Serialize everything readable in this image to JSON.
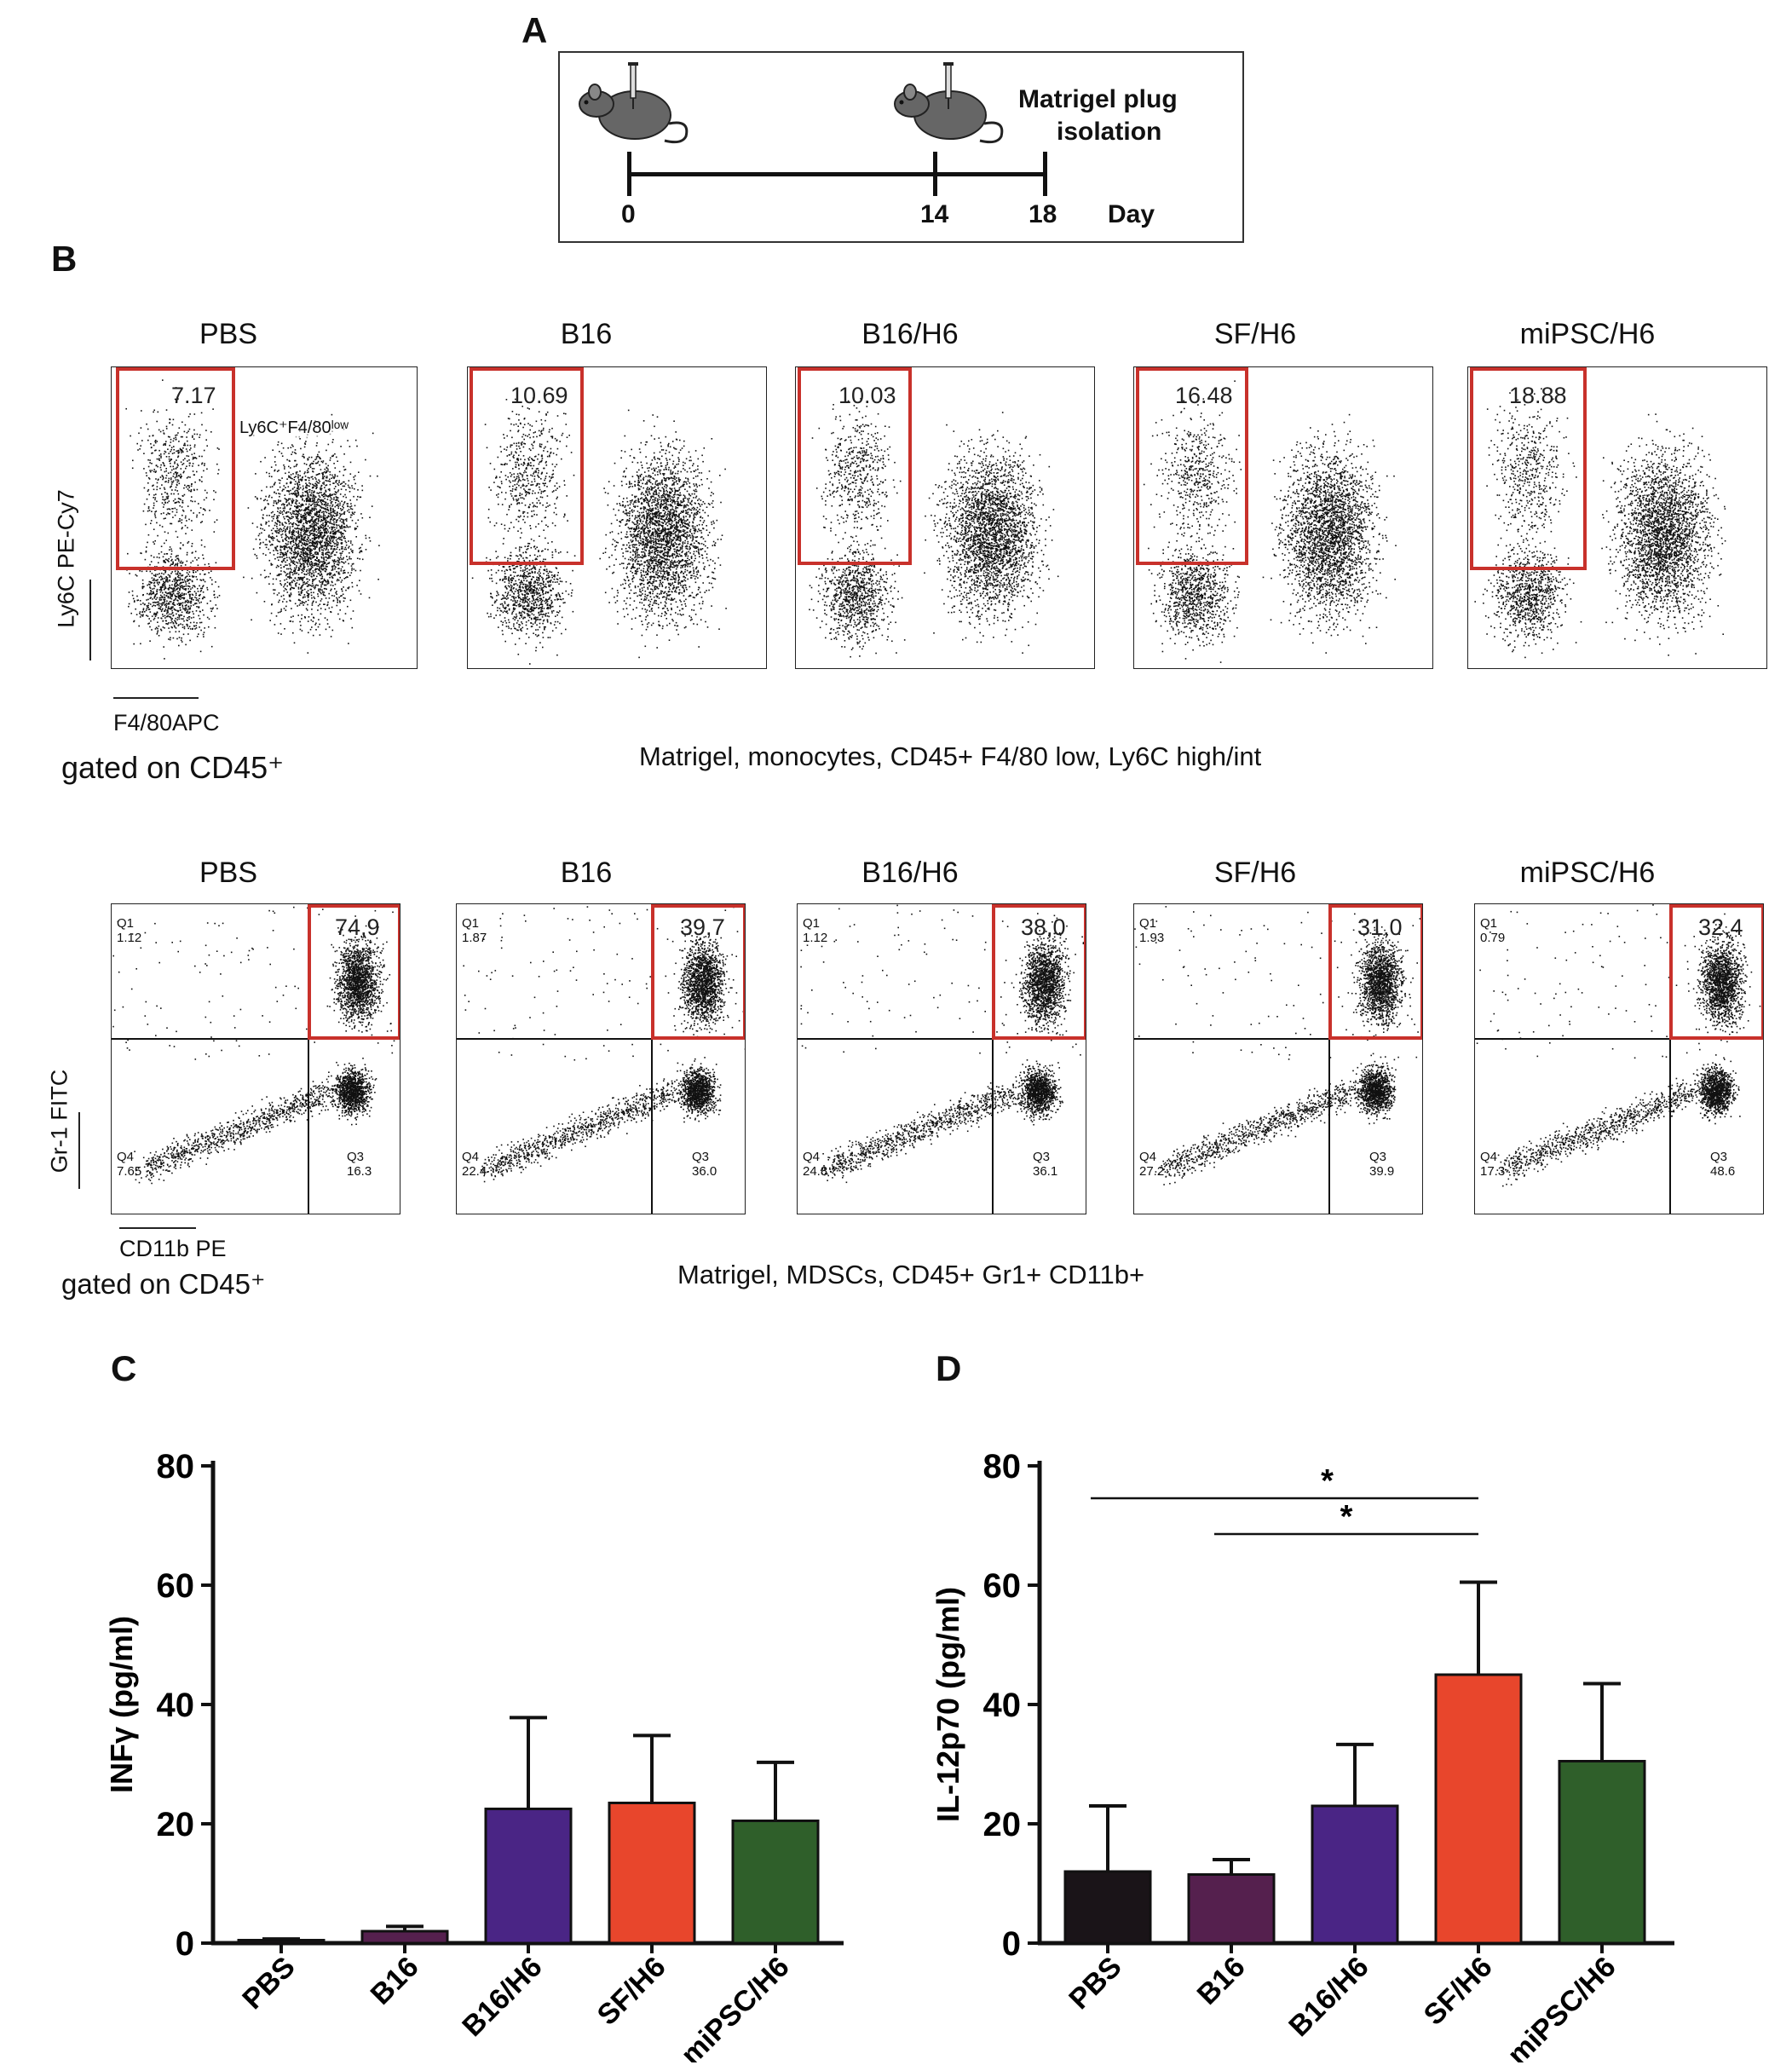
{
  "figure": {
    "panel_a": {
      "letter": "A",
      "days": [
        "0",
        "14",
        "18"
      ],
      "day_label": "Day",
      "endpoint_label_line1": "Matrigel plug",
      "endpoint_label_line2": "isolation"
    },
    "panel_b": {
      "letter": "B",
      "monocytes": {
        "groups": [
          "PBS",
          "B16",
          "B16/H6",
          "SF/H6",
          "miPSC/H6"
        ],
        "gate_values": [
          "7.17",
          "10.69",
          "10.03",
          "16.48",
          "18.88"
        ],
        "gate_label": "Ly6C⁺F4/80ˡᵒʷ",
        "y_axis": "Ly6C PE-Cy7",
        "x_axis": "F4/80APC",
        "gating": "gated on CD45⁺",
        "caption": "Matrigel, monocytes, CD45+ F4/80 low, Ly6C high/int"
      },
      "mdsc": {
        "groups": [
          "PBS",
          "B16",
          "B16/H6",
          "SF/H6",
          "miPSC/H6"
        ],
        "q2_values": [
          "74,9",
          "39,7",
          "38,0",
          "31,0",
          "32,4"
        ],
        "q1_values": [
          "1.12",
          "1.87",
          "1.12",
          "1.93",
          "0.79"
        ],
        "q4_values": [
          "7.65",
          "22.4",
          "24.8",
          "27.2",
          "17.3"
        ],
        "q3_values": [
          "16.3",
          "36.0",
          "36.1",
          "39.9",
          "48.6"
        ],
        "q_names": [
          "Q1",
          "Q3",
          "Q4"
        ],
        "y_axis": "Gr-1 FITC",
        "x_axis": "CD11b PE",
        "gating": "gated on CD45⁺",
        "caption": "Matrigel, MDSCs, CD45+ Gr1+ CD11b+"
      }
    }
  },
  "chart_data": [
    {
      "type": "bar",
      "panel": "C",
      "categories": [
        "PBS",
        "B16",
        "B16/H6",
        "SF/H6",
        "miPSC/H6"
      ],
      "values": [
        0.5,
        2,
        22.5,
        23.5,
        20.5
      ],
      "errors": [
        0.2,
        0.8,
        15.3,
        11.3,
        9.8
      ],
      "colors": [
        "#1a1418",
        "#55204e",
        "#4a2585",
        "#e8462c",
        "#2f5f2a"
      ],
      "ylabel": "INFγ (pg/ml)",
      "ylim": [
        0,
        80
      ],
      "yticks": [
        "0",
        "20",
        "40",
        "60",
        "80"
      ]
    },
    {
      "type": "bar",
      "panel": "D",
      "categories": [
        "PBS",
        "B16",
        "B16/H6",
        "SF/H6",
        "miPSC/H6"
      ],
      "values": [
        12,
        11.5,
        23,
        45,
        30.5
      ],
      "errors": [
        11,
        2.5,
        10.3,
        15.5,
        13
      ],
      "colors": [
        "#1a1418",
        "#55204e",
        "#4a2585",
        "#e8462c",
        "#2f5f2a"
      ],
      "ylabel": "IL-12p70 (pg/ml)",
      "ylim": [
        0,
        80
      ],
      "yticks": [
        "0",
        "20",
        "40",
        "60",
        "80"
      ],
      "significance": [
        {
          "from": "PBS",
          "to": "SF/H6",
          "label": "*"
        },
        {
          "from": "B16",
          "to": "SF/H6",
          "label": "*"
        }
      ]
    }
  ]
}
